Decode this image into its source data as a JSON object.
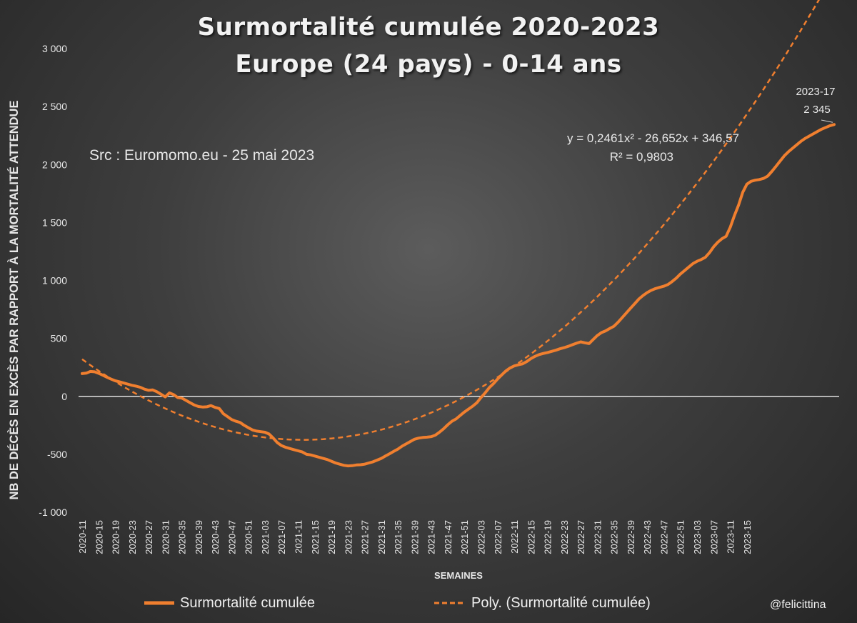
{
  "chart_data": {
    "type": "line",
    "title": [
      "Surmortalité cumulée 2020-2023",
      "Europe (24 pays) - 0-14 ans"
    ],
    "source_note": "Src : Euromomo.eu  - 25 mai 2023",
    "xlabel": "SEMAINES",
    "ylabel": "NB DE DÉCÈS EN EXCÈS PAR RAPPORT À LA MORTALITÉ ATTENDUE",
    "ylim": [
      -1000,
      3000
    ],
    "yticks": [
      -1000,
      -500,
      0,
      500,
      1000,
      1500,
      2000,
      2500,
      3000
    ],
    "ytick_labels": [
      "-1 000",
      "-500",
      "0",
      "500",
      "1 000",
      "1 500",
      "2 000",
      "2 500",
      "3 000"
    ],
    "xtick_labels": [
      "2020-11",
      "2020-15",
      "2020-19",
      "2020-23",
      "2020-27",
      "2020-31",
      "2020-35",
      "2020-39",
      "2020-43",
      "2020-47",
      "2020-51",
      "2021-03",
      "2021-07",
      "2021-11",
      "2021-15",
      "2021-19",
      "2021-23",
      "2021-27",
      "2021-31",
      "2021-35",
      "2021-39",
      "2021-43",
      "2021-47",
      "2021-51",
      "2022-03",
      "2022-07",
      "2022-11",
      "2022-15",
      "2022-19",
      "2022-23",
      "2022-27",
      "2022-31",
      "2022-35",
      "2022-39",
      "2022-43",
      "2022-47",
      "2022-51",
      "2023-03",
      "2023-07",
      "2023-11",
      "2023-15"
    ],
    "legend_position": "bottom",
    "grid": false,
    "colors": {
      "series": "#f07f2f",
      "zero_line": "#ffffff",
      "text": "#e8e8e8"
    },
    "series": [
      {
        "name": "Surmortalité cumulée",
        "style": "solid",
        "values": [
          196,
          200,
          215,
          212,
          198,
          182,
          164,
          148,
          134,
          125,
          115,
          105,
          95,
          88,
          78,
          62,
          52,
          55,
          40,
          18,
          -5,
          30,
          15,
          -10,
          -15,
          -35,
          -55,
          -75,
          -88,
          -92,
          -90,
          -80,
          -95,
          -105,
          -150,
          -175,
          -200,
          -215,
          -225,
          -250,
          -270,
          -290,
          -300,
          -305,
          -310,
          -325,
          -360,
          -400,
          -425,
          -440,
          -450,
          -460,
          -470,
          -480,
          -500,
          -505,
          -515,
          -525,
          -535,
          -545,
          -560,
          -575,
          -585,
          -595,
          -600,
          -598,
          -592,
          -590,
          -585,
          -575,
          -565,
          -550,
          -535,
          -515,
          -495,
          -475,
          -455,
          -430,
          -410,
          -390,
          -370,
          -360,
          -355,
          -352,
          -348,
          -335,
          -310,
          -280,
          -245,
          -215,
          -195,
          -165,
          -135,
          -110,
          -85,
          -55,
          -10,
          30,
          75,
          110,
          150,
          185,
          220,
          245,
          262,
          272,
          280,
          300,
          325,
          345,
          360,
          370,
          378,
          388,
          398,
          410,
          420,
          432,
          445,
          458,
          470,
          462,
          455,
          490,
          525,
          550,
          565,
          585,
          605,
          640,
          680,
          720,
          760,
          800,
          840,
          870,
          895,
          915,
          930,
          940,
          950,
          965,
          990,
          1020,
          1055,
          1085,
          1115,
          1145,
          1165,
          1180,
          1200,
          1240,
          1290,
          1330,
          1360,
          1380,
          1460,
          1560,
          1650,
          1760,
          1830,
          1855,
          1865,
          1870,
          1880,
          1900,
          1940,
          1985,
          2030,
          2075,
          2110,
          2140,
          2170,
          2200,
          2225,
          2245,
          2265,
          2285,
          2305,
          2320,
          2335,
          2345
        ]
      },
      {
        "name": "Poly. (Surmortalité cumulée)",
        "style": "dashed",
        "equation": "y = 0,2461x² - 26,652x + 346,57",
        "r_squared": "R² = 0,9803",
        "coefficients": {
          "a": 0.2461,
          "b": -26.652,
          "c": 346.57
        }
      }
    ],
    "annotations": [
      {
        "label": "2023-17",
        "value_label": "2 345",
        "point": "last"
      }
    ]
  },
  "watermark": "@felicittina"
}
